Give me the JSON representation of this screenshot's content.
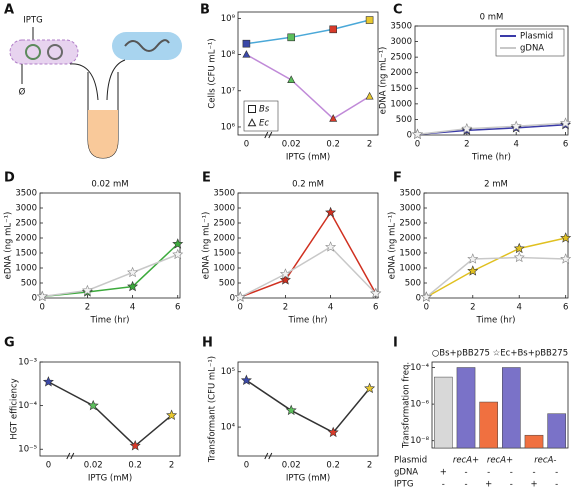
{
  "diagram": {
    "panel": "A",
    "labels": [
      "IPTG",
      "Ø"
    ]
  },
  "chart_data": [
    {
      "panel": "B",
      "type": "line",
      "xlabel": "IPTG (mM)",
      "ylabel": "Cells (CFU mL⁻¹)",
      "categories": [
        "0",
        "0.02",
        "0.2",
        "2"
      ],
      "log_y": true,
      "ylim": [
        600000,
        1500000000
      ],
      "yticks": [
        {
          "value": 1000000,
          "label": "10⁶"
        },
        {
          "value": 10000000,
          "label": "10⁷"
        },
        {
          "value": 100000000,
          "label": "10⁸"
        },
        {
          "value": 1000000000,
          "label": "10⁹"
        }
      ],
      "point_colors": [
        "#3a48a8",
        "#5cbf5c",
        "#d83a2a",
        "#e8c830"
      ],
      "legend": "lower left",
      "series": [
        {
          "name": "Bs",
          "color": "#4aa8d8",
          "marker": "square",
          "values": [
            200000000,
            300000000,
            500000000,
            900000000
          ]
        },
        {
          "name": "Ec",
          "color": "#c08ad8",
          "marker": "triangle",
          "values": [
            100000000,
            20000000,
            1700000,
            7000000
          ]
        }
      ]
    },
    {
      "panel": "C",
      "type": "line",
      "title": "0 mM",
      "xlabel": "Time (hr)",
      "ylabel": "eDNA (ng mL⁻¹)",
      "x": [
        0,
        2,
        4,
        6
      ],
      "xlim": [
        -0.1,
        6.1
      ],
      "xticks": [
        0,
        2,
        4,
        6
      ],
      "ylim": [
        0,
        3500
      ],
      "yticks": [
        0,
        500,
        1000,
        1500,
        2000,
        2500,
        3000,
        3500
      ],
      "legend": "upper right",
      "series": [
        {
          "name": "Plasmid",
          "color": "#3a3aa8",
          "marker": "star",
          "values": [
            20,
            150,
            230,
            330
          ]
        },
        {
          "name": "gDNA",
          "color": "#c8c8c8",
          "marker": "star",
          "values": [
            20,
            200,
            280,
            380
          ]
        }
      ]
    },
    {
      "panel": "D",
      "type": "line",
      "title": "0.02 mM",
      "xlabel": "Time (hr)",
      "ylabel": "eDNA (ng mL⁻¹)",
      "x": [
        0,
        2,
        4,
        6
      ],
      "xlim": [
        -0.1,
        6.1
      ],
      "xticks": [
        0,
        2,
        4,
        6
      ],
      "ylim": [
        0,
        3500
      ],
      "yticks": [
        0,
        500,
        1000,
        1500,
        2000,
        2500,
        3000,
        3500
      ],
      "series": [
        {
          "color": "#3caa3c",
          "marker": "star",
          "values": [
            50,
            200,
            380,
            1800
          ]
        },
        {
          "color": "#c8c8c8",
          "marker": "star",
          "values": [
            50,
            250,
            850,
            1450
          ]
        }
      ]
    },
    {
      "panel": "E",
      "type": "line",
      "title": "0.2 mM",
      "xlabel": "Time (hr)",
      "ylabel": "eDNA (ng mL⁻¹)",
      "x": [
        0,
        2,
        4,
        6
      ],
      "xlim": [
        -0.1,
        6.1
      ],
      "xticks": [
        0,
        2,
        4,
        6
      ],
      "ylim": [
        0,
        3500
      ],
      "yticks": [
        0,
        500,
        1000,
        1500,
        2000,
        2500,
        3000,
        3500
      ],
      "series": [
        {
          "color": "#d03020",
          "marker": "star",
          "values": [
            30,
            600,
            2850,
            150
          ]
        },
        {
          "color": "#c8c8c8",
          "marker": "star",
          "values": [
            30,
            800,
            1700,
            150
          ]
        }
      ]
    },
    {
      "panel": "F",
      "type": "line",
      "title": "2 mM",
      "xlabel": "Time (hr)",
      "ylabel": "eDNA (ng mL⁻¹)",
      "x": [
        0,
        2,
        4,
        6
      ],
      "xlim": [
        -0.1,
        6.1
      ],
      "xticks": [
        0,
        2,
        4,
        6
      ],
      "ylim": [
        0,
        3500
      ],
      "yticks": [
        0,
        500,
        1000,
        1500,
        2000,
        2500,
        3000,
        3500
      ],
      "series": [
        {
          "color": "#e0c020",
          "marker": "star",
          "values": [
            30,
            900,
            1650,
            2000
          ]
        },
        {
          "color": "#c8c8c8",
          "marker": "star",
          "values": [
            30,
            1300,
            1350,
            1300
          ]
        }
      ]
    },
    {
      "panel": "G",
      "type": "line",
      "xlabel": "IPTG (mM)",
      "ylabel": "HGT efficiency",
      "categories": [
        "0",
        "0.02",
        "0.2",
        "2"
      ],
      "log_y": true,
      "ylim": [
        7e-06,
        0.001
      ],
      "yticks": [
        {
          "value": 1e-05,
          "label": "10⁻⁵"
        },
        {
          "value": 0.0001,
          "label": "10⁻⁴"
        },
        {
          "value": 0.001,
          "label": "10⁻³"
        }
      ],
      "point_colors": [
        "#3a48a8",
        "#5cbf5c",
        "#d83a2a",
        "#e8c830"
      ],
      "series": [
        {
          "color": "#333333",
          "marker": "star",
          "values": [
            0.00035,
            0.0001,
            1.2e-05,
            6e-05
          ]
        }
      ]
    },
    {
      "panel": "H",
      "type": "line",
      "xlabel": "IPTG (mM)",
      "ylabel": "Transformant (CFU mL⁻¹)",
      "categories": [
        "0",
        "0.02",
        "0.2",
        "2"
      ],
      "log_y": true,
      "ylim": [
        3000,
        150000
      ],
      "yticks": [
        {
          "value": 10000,
          "label": "10⁴"
        },
        {
          "value": 100000,
          "label": "10⁵"
        }
      ],
      "point_colors": [
        "#3a48a8",
        "#5cbf5c",
        "#d83a2a",
        "#e8c830"
      ],
      "series": [
        {
          "color": "#333333",
          "marker": "star",
          "values": [
            70000,
            20000,
            8000,
            50000
          ]
        }
      ]
    },
    {
      "panel": "I",
      "type": "bar",
      "title": "○Bs+pBB275 ☆Ec+Bs+pBB275",
      "ylabel": "Transformation freq.",
      "log_y": true,
      "ylim": [
        4e-09,
        0.0002
      ],
      "yticks": [
        {
          "value": 1e-08,
          "label": "10⁻⁸"
        },
        {
          "value": 1e-06,
          "label": "10⁻⁶"
        },
        {
          "value": 0.0001,
          "label": "10⁻⁴"
        }
      ],
      "values": [
        3e-05,
        0.0001,
        1.3e-06,
        0.0001,
        2e-08,
        3e-07
      ],
      "colors": [
        "#d8d8d8",
        "#7a72c8",
        "#f07040",
        "#7a72c8",
        "#f07040",
        "#7a72c8"
      ],
      "rows": [
        {
          "label": "Plasmid",
          "entries": [
            null,
            "recA+",
            "recA+",
            null,
            "recA-",
            null
          ]
        },
        {
          "label": "gDNA",
          "entries": [
            "+",
            "-",
            "-",
            "-",
            "-",
            "-"
          ]
        },
        {
          "label": "IPTG",
          "entries": [
            "-",
            "-",
            "+",
            "-",
            "+",
            "-"
          ]
        }
      ]
    }
  ]
}
